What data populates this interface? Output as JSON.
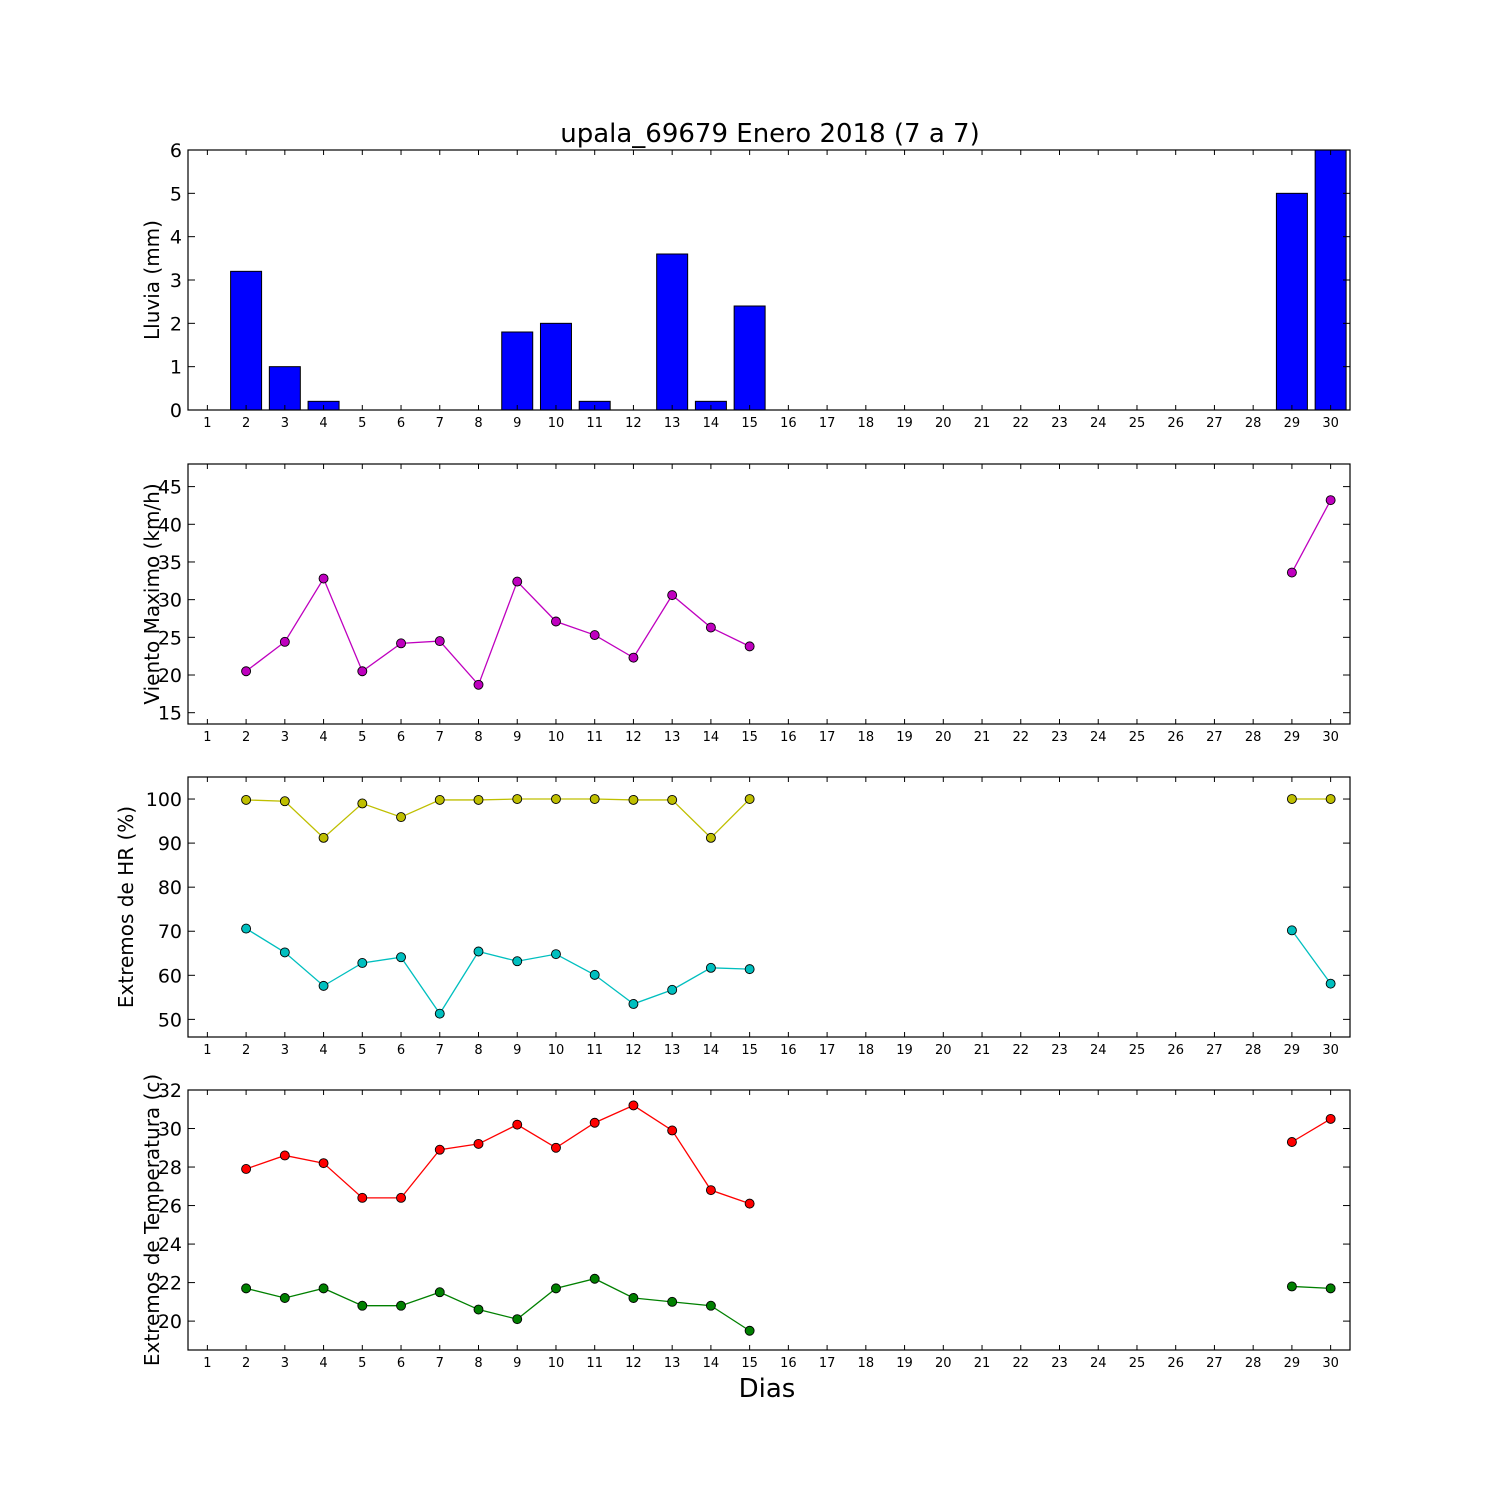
{
  "chart_data": [
    {
      "type": "bar",
      "title": "upala_69679 Enero 2018  (7 a 7)",
      "xlabel": "",
      "ylabel": "Lluvia (mm)",
      "x": [
        1,
        2,
        3,
        4,
        5,
        6,
        7,
        8,
        9,
        10,
        11,
        12,
        13,
        14,
        15,
        16,
        17,
        18,
        19,
        20,
        21,
        22,
        23,
        24,
        25,
        26,
        27,
        28,
        29,
        30
      ],
      "ylim": [
        0,
        6
      ],
      "yticks": [
        0,
        1,
        2,
        3,
        4,
        5,
        6
      ],
      "grid": false,
      "colors": {
        "bar": "#0000ff"
      },
      "series": [
        {
          "values": [
            null,
            3.2,
            1.0,
            0.2,
            0,
            0,
            0,
            0,
            1.8,
            2.0,
            0.2,
            0,
            3.6,
            0.2,
            2.4,
            null,
            null,
            null,
            null,
            null,
            null,
            null,
            null,
            null,
            null,
            null,
            null,
            null,
            5.0,
            6.0
          ]
        }
      ]
    },
    {
      "type": "line",
      "title": "",
      "xlabel": "",
      "ylabel": "Viento Maximo (km/h)",
      "x": [
        1,
        2,
        3,
        4,
        5,
        6,
        7,
        8,
        9,
        10,
        11,
        12,
        13,
        14,
        15,
        16,
        17,
        18,
        19,
        20,
        21,
        22,
        23,
        24,
        25,
        26,
        27,
        28,
        29,
        30
      ],
      "ylim": [
        13.5,
        48
      ],
      "yticks": [
        15,
        20,
        25,
        30,
        35,
        40,
        45
      ],
      "grid": false,
      "colors": {
        "line": "#bf00bf"
      },
      "series": [
        {
          "values": [
            null,
            20.5,
            24.4,
            32.8,
            20.5,
            24.2,
            24.5,
            18.7,
            32.4,
            27.1,
            25.3,
            22.3,
            30.6,
            26.3,
            23.8,
            null,
            null,
            null,
            null,
            null,
            null,
            null,
            null,
            null,
            null,
            null,
            null,
            null,
            33.6,
            43.2
          ]
        }
      ]
    },
    {
      "type": "line",
      "title": "",
      "xlabel": "",
      "ylabel": "Extremos de HR (%)",
      "x": [
        1,
        2,
        3,
        4,
        5,
        6,
        7,
        8,
        9,
        10,
        11,
        12,
        13,
        14,
        15,
        16,
        17,
        18,
        19,
        20,
        21,
        22,
        23,
        24,
        25,
        26,
        27,
        28,
        29,
        30
      ],
      "ylim": [
        46,
        105
      ],
      "yticks": [
        50,
        60,
        70,
        80,
        90,
        100
      ],
      "grid": false,
      "colors": {
        "max": "#bfbf00",
        "min": "#00bfbf"
      },
      "series": [
        {
          "values": [
            null,
            99.8,
            99.5,
            91.2,
            99.0,
            95.9,
            99.8,
            99.8,
            100,
            100,
            100,
            99.8,
            99.8,
            91.2,
            100,
            null,
            null,
            null,
            null,
            null,
            null,
            null,
            null,
            null,
            null,
            null,
            null,
            null,
            100,
            100
          ]
        },
        {
          "values": [
            null,
            70.6,
            65.2,
            57.6,
            62.8,
            64.1,
            51.3,
            65.4,
            63.2,
            64.8,
            60.1,
            53.5,
            56.7,
            61.7,
            61.4,
            null,
            null,
            null,
            null,
            null,
            null,
            null,
            null,
            null,
            null,
            null,
            null,
            null,
            70.2,
            58.1
          ]
        }
      ]
    },
    {
      "type": "line",
      "title": "",
      "xlabel": "Dias",
      "ylabel": "Extremos de Temperatura (c)",
      "x": [
        1,
        2,
        3,
        4,
        5,
        6,
        7,
        8,
        9,
        10,
        11,
        12,
        13,
        14,
        15,
        16,
        17,
        18,
        19,
        20,
        21,
        22,
        23,
        24,
        25,
        26,
        27,
        28,
        29,
        30
      ],
      "ylim": [
        18.5,
        32
      ],
      "yticks": [
        20,
        22,
        24,
        26,
        28,
        30,
        32
      ],
      "grid": false,
      "colors": {
        "max": "#ff0000",
        "min": "#008000"
      },
      "series": [
        {
          "values": [
            null,
            27.9,
            28.6,
            28.2,
            26.4,
            26.4,
            28.9,
            29.2,
            30.2,
            29.0,
            30.3,
            31.2,
            29.9,
            26.8,
            26.1,
            null,
            null,
            null,
            null,
            null,
            null,
            null,
            null,
            null,
            null,
            null,
            null,
            null,
            29.3,
            30.5
          ]
        },
        {
          "values": [
            null,
            21.7,
            21.2,
            21.7,
            20.8,
            20.8,
            21.5,
            20.6,
            20.1,
            21.7,
            22.2,
            21.2,
            21.0,
            20.8,
            19.5,
            null,
            null,
            null,
            null,
            null,
            null,
            null,
            null,
            null,
            null,
            null,
            null,
            null,
            21.8,
            21.7
          ]
        }
      ]
    }
  ]
}
